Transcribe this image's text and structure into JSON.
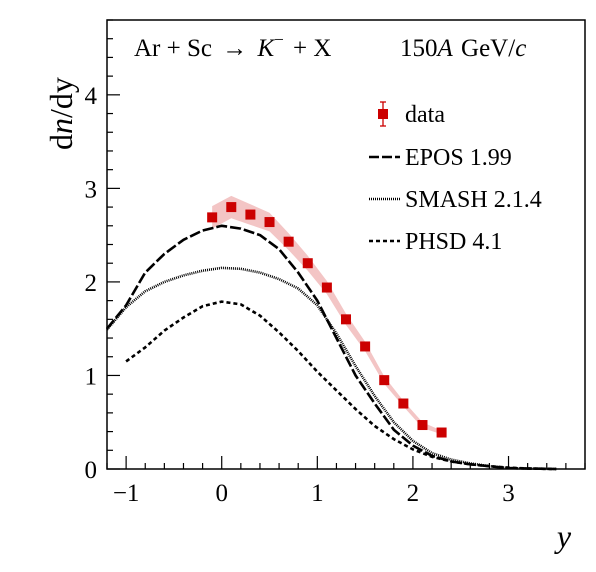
{
  "chart_data": {
    "type": "line",
    "reaction_label": {
      "lhs": "Ar + Sc",
      "arrow": "→",
      "particle": "K",
      "particle_charge": "−",
      "rhs": "+ X"
    },
    "energy_label": {
      "number": "150",
      "unit_italic": "A",
      "unit": "GeV/",
      "c": "c"
    },
    "ylabel": "dn/dy",
    "ylabel_parts": [
      "d",
      "n",
      "/dy"
    ],
    "xlabel": "y",
    "xlim": [
      -1.2,
      3.8
    ],
    "ylim": [
      0,
      4.8
    ],
    "x_ticks": [
      -1,
      0,
      1,
      2,
      3
    ],
    "x_tick_labels": [
      "−1",
      "0",
      "1",
      "2",
      "3"
    ],
    "y_ticks": [
      0,
      1,
      2,
      3,
      4
    ],
    "y_tick_labels": [
      "0",
      "1",
      "2",
      "3",
      "4"
    ],
    "legend_position": "top-right",
    "data": {
      "name": "data",
      "color": "#cc0000",
      "band_color": "#f3c5c5",
      "x": [
        -0.1,
        0.1,
        0.3,
        0.5,
        0.7,
        0.9,
        1.1,
        1.3,
        1.5,
        1.7,
        1.9,
        2.1,
        2.3
      ],
      "y": [
        2.69,
        2.8,
        2.72,
        2.64,
        2.43,
        2.2,
        1.94,
        1.6,
        1.31,
        0.95,
        0.7,
        0.47,
        0.39
      ],
      "syst": [
        0.12,
        0.12,
        0.11,
        0.1,
        0.09,
        0.08,
        0.07,
        0.06,
        0.05,
        0.04,
        0.03,
        0.03,
        0.02
      ]
    },
    "series": [
      {
        "name": "EPOS 1.99",
        "style": "long-dash",
        "x": [
          -1.2,
          -1.0,
          -0.8,
          -0.6,
          -0.4,
          -0.2,
          0.0,
          0.2,
          0.4,
          0.6,
          0.8,
          1.0,
          1.2,
          1.4,
          1.6,
          1.8,
          2.0,
          2.2,
          2.4,
          2.6,
          2.8,
          3.0,
          3.2,
          3.5
        ],
        "y": [
          1.5,
          1.75,
          2.1,
          2.3,
          2.45,
          2.55,
          2.6,
          2.57,
          2.5,
          2.35,
          2.1,
          1.8,
          1.4,
          1.0,
          0.7,
          0.42,
          0.25,
          0.14,
          0.08,
          0.05,
          0.03,
          0.01,
          0.005,
          0.0
        ]
      },
      {
        "name": "SMASH 2.1.4",
        "style": "fine-dot",
        "x": [
          -1.2,
          -1.0,
          -0.8,
          -0.6,
          -0.4,
          -0.2,
          0.0,
          0.2,
          0.4,
          0.6,
          0.8,
          1.0,
          1.2,
          1.4,
          1.6,
          1.8,
          2.0,
          2.2,
          2.4,
          2.6,
          2.8,
          3.0,
          3.2,
          3.5
        ],
        "y": [
          1.49,
          1.73,
          1.9,
          2.0,
          2.07,
          2.12,
          2.15,
          2.14,
          2.1,
          2.03,
          1.93,
          1.75,
          1.45,
          1.1,
          0.78,
          0.5,
          0.3,
          0.17,
          0.1,
          0.06,
          0.03,
          0.01,
          0.005,
          0.0
        ]
      },
      {
        "name": "PHSD 4.1",
        "style": "short-dash",
        "x": [
          -1.0,
          -0.8,
          -0.6,
          -0.4,
          -0.2,
          0.0,
          0.2,
          0.4,
          0.6,
          0.8,
          1.0,
          1.2,
          1.4,
          1.6,
          1.8,
          2.0,
          2.2,
          2.4,
          2.6,
          2.8,
          3.0,
          3.2,
          3.5
        ],
        "y": [
          1.15,
          1.3,
          1.48,
          1.62,
          1.74,
          1.79,
          1.76,
          1.64,
          1.46,
          1.26,
          1.04,
          0.84,
          0.64,
          0.46,
          0.32,
          0.21,
          0.13,
          0.08,
          0.05,
          0.03,
          0.015,
          0.005,
          0.0
        ]
      }
    ]
  }
}
